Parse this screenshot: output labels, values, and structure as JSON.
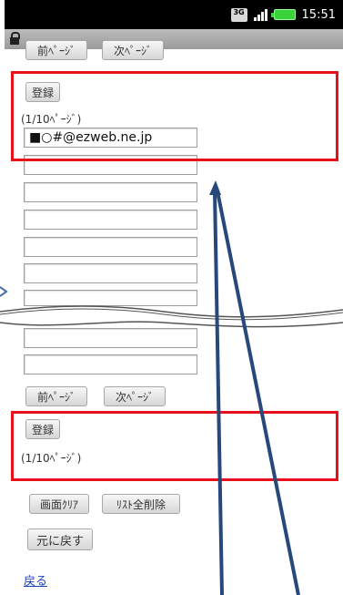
{
  "status_bar": {
    "network_label": "3G",
    "time": "15:51"
  },
  "page": {
    "top_nav": {
      "prev_label": "前ﾍﾟｰｼﾞ",
      "next_label": "次ﾍﾟｰｼﾞ"
    },
    "register_label": "登録",
    "page_indicator": "(1/10ﾍﾟｰｼﾞ)",
    "address_fields": [
      "■○#@ezweb.ne.jp",
      "",
      "",
      "",
      "",
      "",
      "",
      "",
      ""
    ],
    "bottom_nav": {
      "prev_label": "前ﾍﾟｰｼﾞ",
      "next_label": "次ﾍﾟｰｼﾞ"
    },
    "bottom_register_label": "登録",
    "bottom_page_indicator": "(1/10ﾍﾟｰｼﾞ)",
    "clear_screen_label": "画面ｸﾘｱ",
    "delete_all_label": "ﾘｽﾄ全削除",
    "restore_label": "元に戻す",
    "back_link": "戻る"
  },
  "colors": {
    "highlight": "#e8101a",
    "arrow": "#27487a",
    "link": "#1a3fb5"
  }
}
